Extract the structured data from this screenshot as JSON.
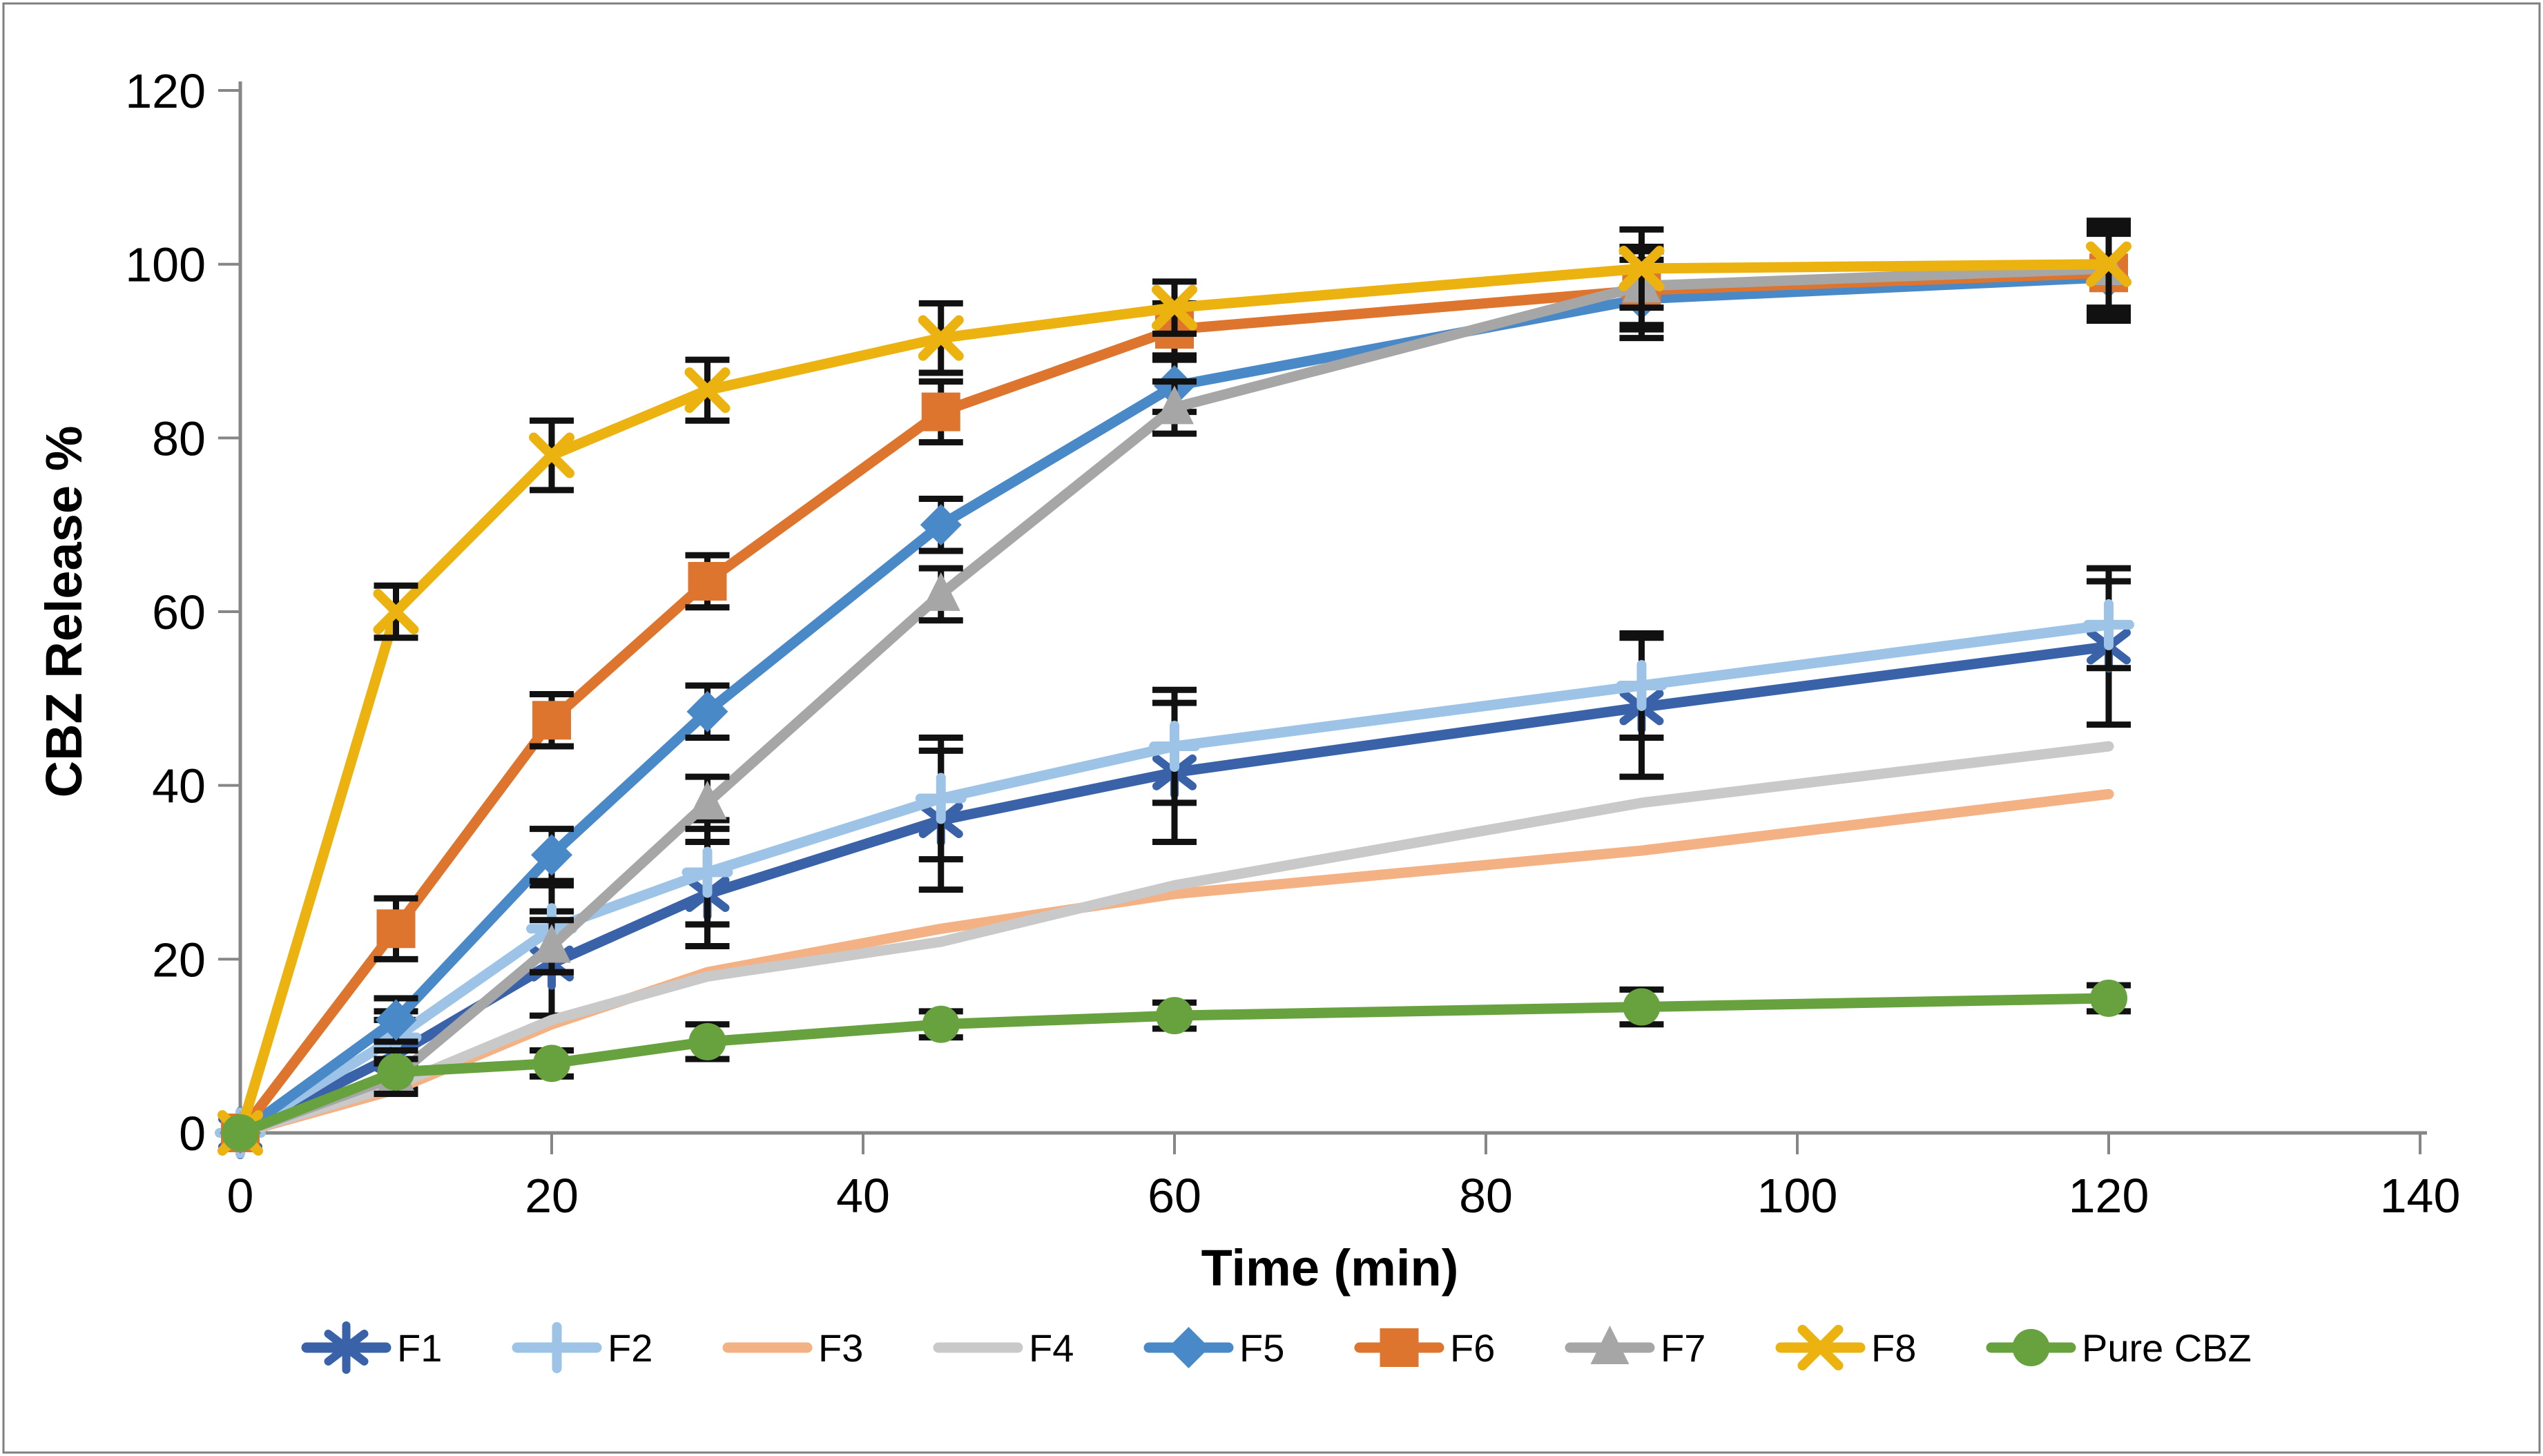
{
  "figure": {
    "background": "#ffffff",
    "border_color": "#7f7f7f"
  },
  "chart_data": {
    "type": "line",
    "title": "",
    "xlabel": "Time (min)",
    "ylabel": "CBZ Release %",
    "x": [
      0,
      10,
      20,
      30,
      45,
      60,
      90,
      120
    ],
    "x_ticks": [
      0,
      20,
      40,
      60,
      80,
      100,
      120,
      140
    ],
    "y_ticks": [
      0,
      20,
      40,
      60,
      80,
      100,
      120
    ],
    "xlim": [
      0,
      140
    ],
    "ylim": [
      0,
      120
    ],
    "grid": false,
    "legend_position": "bottom",
    "axis_color": "#868686",
    "error_bar_color": "#111111",
    "text_color": "#000000",
    "series": [
      {
        "name": "F1",
        "color": "#3A62A8",
        "marker": "asterisk",
        "values": [
          0,
          9,
          19.5,
          27.5,
          36,
          41.5,
          49,
          56
        ],
        "error": [
          0,
          4,
          6,
          6,
          8,
          8,
          8,
          9
        ]
      },
      {
        "name": "F2",
        "color": "#9DC3E6",
        "marker": "plus",
        "values": [
          0,
          11,
          23.5,
          30,
          38.5,
          44.5,
          51.5,
          58.5
        ],
        "error": [
          0,
          3,
          5,
          6,
          7,
          6.5,
          6,
          5
        ]
      },
      {
        "name": "F3",
        "color": "#F4B183",
        "marker": "none",
        "values": [
          0,
          5,
          12.5,
          18.5,
          23.5,
          27.5,
          32.5,
          39
        ],
        "error": [
          0,
          0,
          0,
          0,
          0,
          0,
          0,
          0
        ]
      },
      {
        "name": "F4",
        "color": "#C9C9C9",
        "marker": "none",
        "values": [
          0,
          5.5,
          13,
          18,
          22,
          28.5,
          38,
          44.5
        ],
        "error": [
          0,
          0,
          0,
          0,
          0,
          0,
          0,
          0
        ]
      },
      {
        "name": "F5",
        "color": "#4A89C8",
        "marker": "diamond",
        "values": [
          0,
          13,
          32,
          48.5,
          70,
          86,
          96,
          98.5
        ],
        "error": [
          0,
          2.5,
          3,
          3,
          3,
          3,
          4.5,
          5
        ]
      },
      {
        "name": "F6",
        "color": "#DD752F",
        "marker": "square",
        "values": [
          0,
          23.5,
          47.5,
          63.5,
          83,
          92.5,
          97,
          99
        ],
        "error": [
          0,
          3.5,
          3,
          3,
          3.5,
          3,
          4.5,
          5
        ]
      },
      {
        "name": "F7",
        "color": "#A6A6A6",
        "marker": "triangle",
        "values": [
          0,
          6.5,
          21.5,
          38,
          62,
          83.5,
          97.5,
          99.5
        ],
        "error": [
          0,
          2,
          3,
          3,
          3,
          3,
          4.5,
          5
        ]
      },
      {
        "name": "F8",
        "color": "#ECB310",
        "marker": "x",
        "values": [
          0,
          60,
          78,
          85.5,
          91.5,
          95,
          99.5,
          100
        ],
        "error": [
          0,
          3,
          4,
          3.5,
          4,
          3,
          4.5,
          5
        ]
      },
      {
        "name": "Pure CBZ",
        "color": "#68A23F",
        "marker": "circle",
        "values": [
          0,
          7,
          8,
          10.5,
          12.5,
          13.5,
          14.5,
          15.5
        ],
        "error": [
          0,
          2.5,
          1.5,
          2,
          1.5,
          1.5,
          2,
          1.5
        ]
      }
    ]
  }
}
